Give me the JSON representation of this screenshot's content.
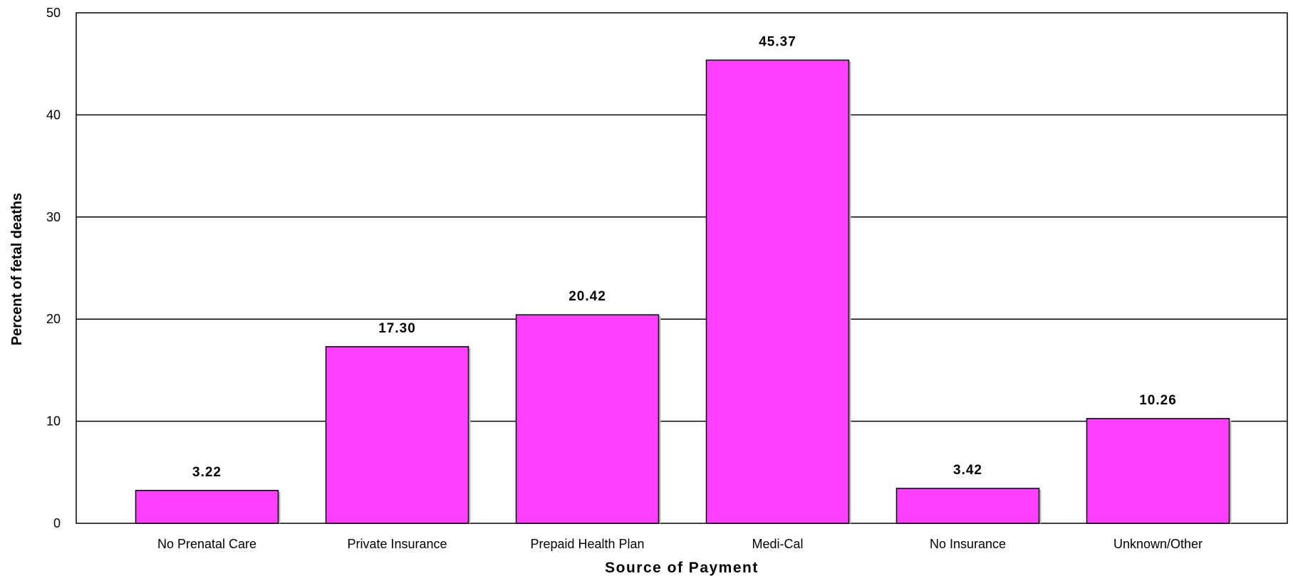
{
  "chart_data": {
    "type": "bar",
    "categories": [
      "No Prenatal Care",
      "Private Insurance",
      "Prepaid Health Plan",
      "Medi-Cal",
      "No Insurance",
      "Unknown/Other"
    ],
    "values": [
      3.22,
      17.3,
      20.42,
      45.37,
      3.42,
      10.26
    ],
    "data_labels": [
      "3.22",
      "17.30",
      "20.42",
      "45.37",
      "3.42",
      "10.26"
    ],
    "xlabel": "Source of Payment",
    "ylabel": "Percent of fetal deaths",
    "ylim": [
      0,
      50
    ],
    "yticks": [
      "0",
      "10",
      "20",
      "30",
      "40",
      "50"
    ],
    "grid": true,
    "bar_color": "#ff40ff"
  }
}
